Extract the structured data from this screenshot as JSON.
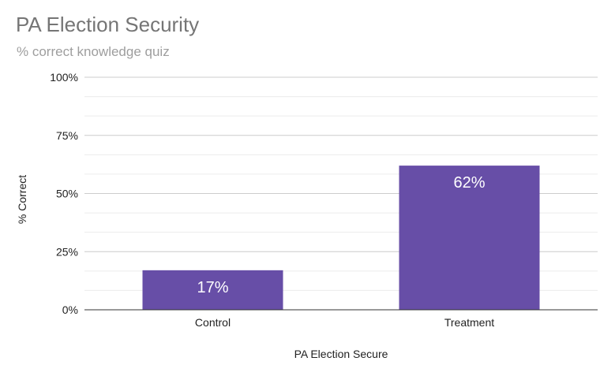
{
  "chart_data": {
    "type": "bar",
    "title": "PA Election Security",
    "subtitle": "% correct knowledge quiz",
    "xlabel": "PA Election Secure",
    "ylabel": "% Correct",
    "categories": [
      "Control",
      "Treatment"
    ],
    "values": [
      17,
      62
    ],
    "data_labels": [
      "17%",
      "62%"
    ],
    "ylim": [
      0,
      100
    ],
    "yticks": [
      0,
      25,
      50,
      75,
      100
    ],
    "ytick_labels": [
      "0%",
      "25%",
      "50%",
      "75%",
      "100%"
    ],
    "grid": true,
    "legend": "none",
    "bar_color": "#674ea7"
  }
}
